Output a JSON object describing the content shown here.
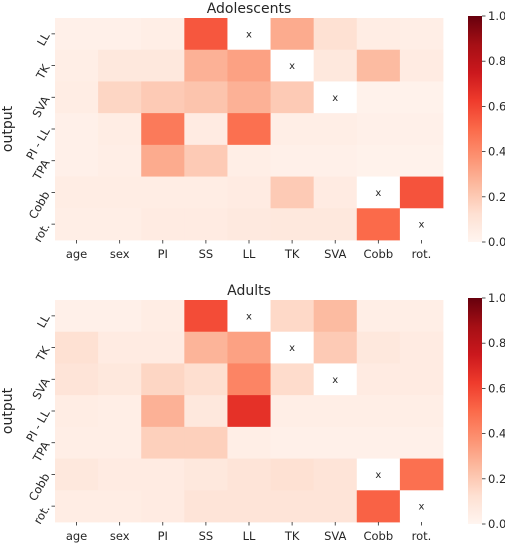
{
  "chart_data": [
    {
      "type": "heatmap",
      "title": "Adolescents",
      "ylabel": "output",
      "x_categories": [
        "age",
        "sex",
        "PI",
        "SS",
        "LL",
        "TK",
        "SVA",
        "Cobb",
        "rot."
      ],
      "y_categories": [
        "LL",
        "TK",
        "SVA",
        "PI - LL",
        "TPA",
        "Cobb",
        "rot."
      ],
      "values": [
        [
          0.03,
          0.03,
          0.04,
          0.55,
          null,
          0.3,
          0.12,
          0.05,
          0.04
        ],
        [
          0.04,
          0.08,
          0.08,
          0.28,
          0.33,
          null,
          0.08,
          0.25,
          0.06
        ],
        [
          0.05,
          0.16,
          0.2,
          0.22,
          0.28,
          0.2,
          null,
          0.02,
          0.02
        ],
        [
          0.03,
          0.05,
          0.45,
          0.06,
          0.48,
          0.04,
          0.04,
          0.03,
          0.03
        ],
        [
          0.03,
          0.04,
          0.3,
          0.2,
          0.04,
          0.03,
          0.03,
          0.02,
          0.02
        ],
        [
          0.05,
          0.05,
          0.05,
          0.05,
          0.06,
          0.2,
          0.06,
          null,
          0.56
        ],
        [
          0.04,
          0.04,
          0.06,
          0.06,
          0.07,
          0.08,
          0.08,
          0.5,
          null
        ]
      ],
      "mask_label": "x",
      "color_range": [
        0.0,
        1.0
      ],
      "colorbar_ticks": [
        "0.0",
        "0.2",
        "0.4",
        "0.6",
        "0.8",
        "1.0"
      ],
      "colormap": "Reds",
      "colormap_low": "#fff5f0",
      "colormap_high": "#67000d"
    },
    {
      "type": "heatmap",
      "title": "Adults",
      "ylabel": "output",
      "x_categories": [
        "age",
        "sex",
        "PI",
        "SS",
        "LL",
        "TK",
        "SVA",
        "Cobb",
        "rot."
      ],
      "y_categories": [
        "LL",
        "TK",
        "SVA",
        "PI - LL",
        "TPA",
        "Cobb",
        "rot."
      ],
      "values": [
        [
          0.03,
          0.03,
          0.05,
          0.58,
          null,
          0.15,
          0.25,
          0.04,
          0.04
        ],
        [
          0.12,
          0.06,
          0.06,
          0.27,
          0.33,
          null,
          0.2,
          0.08,
          0.06
        ],
        [
          0.1,
          0.08,
          0.16,
          0.13,
          0.42,
          0.14,
          null,
          0.06,
          0.06
        ],
        [
          0.05,
          0.04,
          0.28,
          0.08,
          0.66,
          0.04,
          0.04,
          0.04,
          0.04
        ],
        [
          0.04,
          0.04,
          0.18,
          0.18,
          0.04,
          0.03,
          0.03,
          0.03,
          0.03
        ],
        [
          0.08,
          0.06,
          0.06,
          0.08,
          0.1,
          0.12,
          0.1,
          null,
          0.48
        ],
        [
          0.05,
          0.05,
          0.06,
          0.1,
          0.1,
          0.1,
          0.1,
          0.52,
          null
        ]
      ],
      "mask_label": "x",
      "color_range": [
        0.0,
        1.0
      ],
      "colorbar_ticks": [
        "0.0",
        "0.2",
        "0.4",
        "0.6",
        "0.8",
        "1.0"
      ],
      "colormap": "Reds",
      "colormap_low": "#fff5f0",
      "colormap_high": "#67000d"
    }
  ]
}
